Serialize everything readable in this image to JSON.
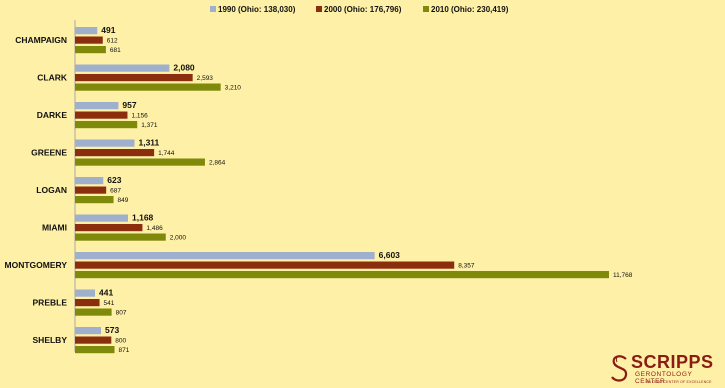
{
  "chart_data": {
    "type": "bar",
    "orientation": "horizontal",
    "title": "",
    "xlabel": "",
    "ylabel": "",
    "grid": false,
    "legend_position": "top",
    "xlim": [
      0,
      12500
    ],
    "categories": [
      "CHAMPAIGN",
      "CLARK",
      "DARKE",
      "GREENE",
      "LOGAN",
      "MIAMI",
      "MONTGOMERY",
      "PREBLE",
      "SHELBY"
    ],
    "series": [
      {
        "name": "1990 (Ohio: 138,030)",
        "color": "#9fb0cf",
        "values": [
          491,
          2080,
          957,
          1311,
          623,
          1168,
          6603,
          441,
          573
        ],
        "labels": [
          "491",
          "2,080",
          "957",
          "1,311",
          "623",
          "1,168",
          "6,603",
          "441",
          "573"
        ]
      },
      {
        "name": "2000 (Ohio: 176,796)",
        "color": "#8b2e0d",
        "values": [
          612,
          2593,
          1156,
          1744,
          687,
          1486,
          8357,
          541,
          800
        ],
        "labels": [
          "612",
          "2,593",
          "1,156",
          "1,744",
          "687",
          "1,486",
          "8,357",
          "541",
          "800"
        ]
      },
      {
        "name": "2010 (Ohio: 230,419)",
        "color": "#7f8a0b",
        "values": [
          681,
          3210,
          1371,
          2864,
          849,
          2000,
          11768,
          807,
          871
        ],
        "labels": [
          "681",
          "3,210",
          "1,371",
          "2,864",
          "849",
          "2,000",
          "11,768",
          "807",
          "871"
        ]
      }
    ]
  },
  "logo": {
    "name": "SCRIPPS",
    "subtitle": "GERONTOLOGY CENTER",
    "tagline": "AN OHIO CENTER OF EXCELLENCE",
    "color": "#8a1c14"
  }
}
